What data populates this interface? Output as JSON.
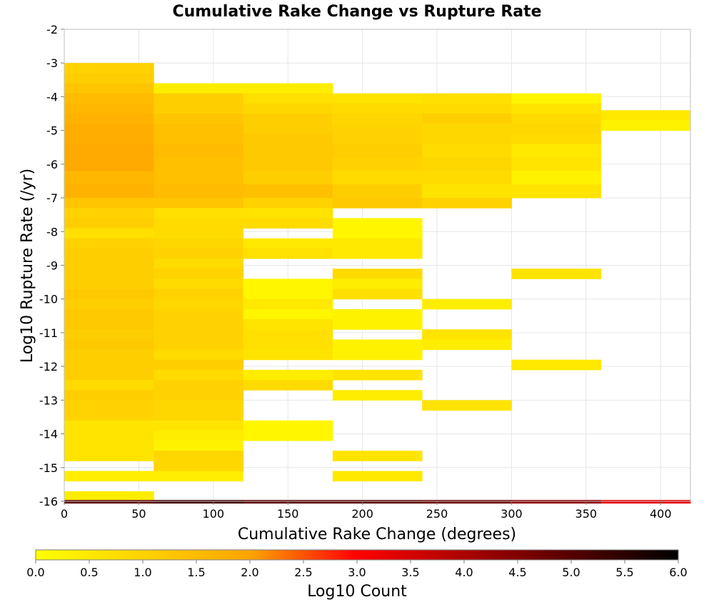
{
  "chart_data": {
    "type": "heatmap",
    "title": "Cumulative Rake Change vs Rupture Rate",
    "xlabel": "Cumulative Rake Change (degrees)",
    "ylabel": "Log10 Rupture Rate (/yr)",
    "xlim": [
      0,
      420
    ],
    "ylim": [
      -16,
      -2
    ],
    "x_ticks": [
      "0",
      "50",
      "100",
      "150",
      "200",
      "250",
      "300",
      "350",
      "400"
    ],
    "y_ticks": [
      "-2",
      "-3",
      "-4",
      "-5",
      "-6",
      "-7",
      "-8",
      "-9",
      "-10",
      "-11",
      "-12",
      "-13",
      "-14",
      "-15",
      "-16"
    ],
    "x_bin_width": 60,
    "y_bin_height": 0.29,
    "colorbar": {
      "label": "Log10 Count",
      "min": 0.0,
      "max": 6.0,
      "ticks": [
        "0.0",
        "0.5",
        "1.0",
        "1.5",
        "2.0",
        "2.5",
        "3.0",
        "3.5",
        "4.0",
        "4.5",
        "5.0",
        "5.5",
        "6.0"
      ],
      "colors": [
        "#ffff00",
        "#ffa500",
        "#ff0000",
        "#000000"
      ]
    },
    "columns": [
      {
        "x": 0,
        "cells": [
          [
            -3.0,
            -3.3,
            1.0
          ],
          [
            -3.3,
            -3.6,
            1.1
          ],
          [
            -3.6,
            -3.9,
            1.3
          ],
          [
            -3.9,
            -4.2,
            1.5
          ],
          [
            -4.2,
            -4.5,
            1.6
          ],
          [
            -4.5,
            -4.8,
            1.7
          ],
          [
            -4.8,
            -5.1,
            1.8
          ],
          [
            -5.1,
            -5.4,
            1.8
          ],
          [
            -5.4,
            -5.8,
            1.9
          ],
          [
            -5.8,
            -6.2,
            1.9
          ],
          [
            -6.2,
            -6.6,
            1.6
          ],
          [
            -6.6,
            -7.0,
            1.7
          ],
          [
            -7.0,
            -7.3,
            1.3
          ],
          [
            -7.3,
            -7.6,
            1.0
          ],
          [
            -7.6,
            -7.9,
            1.1
          ],
          [
            -7.9,
            -8.2,
            0.7
          ],
          [
            -8.2,
            -8.5,
            1.0
          ],
          [
            -8.5,
            -8.8,
            1.1
          ],
          [
            -8.8,
            -9.1,
            1.1
          ],
          [
            -9.1,
            -9.4,
            1.1
          ],
          [
            -9.4,
            -9.7,
            1.1
          ],
          [
            -9.7,
            -10.0,
            1.2
          ],
          [
            -10.0,
            -10.3,
            1.1
          ],
          [
            -10.3,
            -10.6,
            1.2
          ],
          [
            -10.6,
            -10.9,
            1.2
          ],
          [
            -10.9,
            -11.2,
            1.1
          ],
          [
            -11.2,
            -11.5,
            1.2
          ],
          [
            -11.5,
            -11.8,
            1.1
          ],
          [
            -11.8,
            -12.1,
            1.1
          ],
          [
            -12.1,
            -12.4,
            1.1
          ],
          [
            -12.4,
            -12.7,
            0.8
          ],
          [
            -12.7,
            -13.0,
            1.1
          ],
          [
            -13.0,
            -13.3,
            1.0
          ],
          [
            -13.3,
            -13.6,
            1.0
          ],
          [
            -13.6,
            -13.9,
            0.6
          ],
          [
            -13.9,
            -14.2,
            0.6
          ],
          [
            -14.2,
            -14.5,
            0.6
          ],
          [
            -14.5,
            -14.8,
            0.6
          ],
          [
            -15.1,
            -15.4,
            0.4
          ],
          [
            -15.7,
            -16.0,
            0.4
          ]
        ]
      },
      {
        "x": 60,
        "cells": [
          [
            -3.6,
            -3.9,
            0.4
          ],
          [
            -3.9,
            -4.2,
            1.1
          ],
          [
            -4.2,
            -4.5,
            1.1
          ],
          [
            -4.5,
            -4.8,
            1.3
          ],
          [
            -4.8,
            -5.1,
            1.4
          ],
          [
            -5.1,
            -5.4,
            1.4
          ],
          [
            -5.4,
            -5.8,
            1.5
          ],
          [
            -5.8,
            -6.2,
            1.4
          ],
          [
            -6.2,
            -6.6,
            1.4
          ],
          [
            -6.6,
            -7.0,
            1.5
          ],
          [
            -7.0,
            -7.3,
            1.3
          ],
          [
            -7.3,
            -7.6,
            0.7
          ],
          [
            -7.6,
            -7.9,
            0.8
          ],
          [
            -7.9,
            -8.2,
            0.8
          ],
          [
            -8.2,
            -8.5,
            0.9
          ],
          [
            -8.5,
            -8.8,
            1.0
          ],
          [
            -8.8,
            -9.1,
            0.8
          ],
          [
            -9.1,
            -9.4,
            1.0
          ],
          [
            -9.4,
            -9.7,
            0.8
          ],
          [
            -9.7,
            -10.0,
            1.0
          ],
          [
            -10.0,
            -10.3,
            0.9
          ],
          [
            -10.3,
            -10.6,
            1.0
          ],
          [
            -10.6,
            -10.9,
            1.0
          ],
          [
            -10.9,
            -11.2,
            1.0
          ],
          [
            -11.2,
            -11.5,
            1.0
          ],
          [
            -11.5,
            -11.8,
            0.8
          ],
          [
            -11.8,
            -12.1,
            1.1
          ],
          [
            -12.1,
            -12.4,
            0.8
          ],
          [
            -12.4,
            -12.7,
            1.0
          ],
          [
            -12.7,
            -13.0,
            1.0
          ],
          [
            -13.0,
            -13.3,
            0.9
          ],
          [
            -13.3,
            -13.6,
            0.9
          ],
          [
            -13.6,
            -13.9,
            0.6
          ],
          [
            -13.9,
            -14.2,
            0.4
          ],
          [
            -14.2,
            -14.5,
            0.3
          ],
          [
            -14.5,
            -14.8,
            0.9
          ],
          [
            -14.8,
            -15.1,
            0.9
          ],
          [
            -15.1,
            -15.4,
            0.4
          ]
        ]
      },
      {
        "x": 120,
        "cells": [
          [
            -3.6,
            -3.9,
            0.4
          ],
          [
            -3.9,
            -4.2,
            0.7
          ],
          [
            -4.2,
            -4.5,
            0.9
          ],
          [
            -4.5,
            -4.8,
            1.1
          ],
          [
            -4.8,
            -5.1,
            1.1
          ],
          [
            -5.1,
            -5.4,
            1.2
          ],
          [
            -5.4,
            -5.8,
            1.2
          ],
          [
            -5.8,
            -6.2,
            1.2
          ],
          [
            -6.2,
            -6.6,
            1.1
          ],
          [
            -6.6,
            -7.0,
            1.4
          ],
          [
            -7.0,
            -7.3,
            1.0
          ],
          [
            -7.3,
            -7.6,
            0.6
          ],
          [
            -7.6,
            -7.9,
            0.8
          ],
          [
            -8.2,
            -8.5,
            0.5
          ],
          [
            -8.5,
            -8.8,
            0.7
          ],
          [
            -9.4,
            -9.7,
            0.2
          ],
          [
            -9.7,
            -10.0,
            0.2
          ],
          [
            -10.0,
            -10.3,
            0.5
          ],
          [
            -10.3,
            -10.6,
            0.2
          ],
          [
            -10.6,
            -10.9,
            0.6
          ],
          [
            -10.9,
            -11.2,
            0.7
          ],
          [
            -11.2,
            -11.5,
            0.7
          ],
          [
            -11.5,
            -11.8,
            0.6
          ],
          [
            -12.1,
            -12.4,
            0.4
          ],
          [
            -12.4,
            -12.7,
            0.8
          ],
          [
            -13.6,
            -13.9,
            0.2
          ],
          [
            -13.9,
            -14.2,
            0.2
          ]
        ]
      },
      {
        "x": 180,
        "cells": [
          [
            -3.9,
            -4.2,
            0.6
          ],
          [
            -4.2,
            -4.5,
            0.8
          ],
          [
            -4.5,
            -4.8,
            0.9
          ],
          [
            -4.8,
            -5.1,
            1.0
          ],
          [
            -5.1,
            -5.4,
            1.0
          ],
          [
            -5.4,
            -5.8,
            1.1
          ],
          [
            -5.8,
            -6.2,
            1.0
          ],
          [
            -6.2,
            -6.6,
            0.8
          ],
          [
            -6.6,
            -7.0,
            1.1
          ],
          [
            -7.0,
            -7.3,
            1.2
          ],
          [
            -7.6,
            -7.9,
            0.2
          ],
          [
            -7.9,
            -8.2,
            0.2
          ],
          [
            -8.2,
            -8.5,
            0.5
          ],
          [
            -8.5,
            -8.8,
            0.5
          ],
          [
            -9.1,
            -9.4,
            0.8
          ],
          [
            -9.4,
            -9.7,
            0.4
          ],
          [
            -9.7,
            -10.0,
            0.7
          ],
          [
            -10.3,
            -10.6,
            0.3
          ],
          [
            -10.6,
            -10.9,
            0.3
          ],
          [
            -11.2,
            -11.5,
            0.3
          ],
          [
            -11.5,
            -11.8,
            0.3
          ],
          [
            -12.1,
            -12.4,
            0.6
          ],
          [
            -12.7,
            -13.0,
            0.4
          ],
          [
            -14.5,
            -14.8,
            0.6
          ],
          [
            -15.1,
            -15.4,
            0.5
          ]
        ]
      },
      {
        "x": 240,
        "cells": [
          [
            -3.9,
            -4.2,
            0.7
          ],
          [
            -4.2,
            -4.5,
            0.8
          ],
          [
            -4.5,
            -4.8,
            1.1
          ],
          [
            -4.8,
            -5.1,
            0.9
          ],
          [
            -5.1,
            -5.4,
            0.9
          ],
          [
            -5.4,
            -5.8,
            0.8
          ],
          [
            -5.8,
            -6.2,
            0.9
          ],
          [
            -6.2,
            -6.6,
            0.8
          ],
          [
            -6.6,
            -7.0,
            0.6
          ],
          [
            -7.0,
            -7.3,
            1.0
          ],
          [
            -10.0,
            -10.3,
            0.4
          ],
          [
            -10.9,
            -11.2,
            0.6
          ],
          [
            -11.2,
            -11.5,
            0.4
          ],
          [
            -13.0,
            -13.3,
            0.6
          ]
        ]
      },
      {
        "x": 300,
        "cells": [
          [
            -3.9,
            -4.2,
            0.2
          ],
          [
            -4.2,
            -4.5,
            0.6
          ],
          [
            -4.5,
            -4.8,
            0.8
          ],
          [
            -4.8,
            -5.1,
            0.9
          ],
          [
            -5.1,
            -5.4,
            0.8
          ],
          [
            -5.4,
            -5.8,
            0.5
          ],
          [
            -5.8,
            -6.2,
            0.6
          ],
          [
            -6.2,
            -6.6,
            0.3
          ],
          [
            -6.6,
            -7.0,
            0.6
          ],
          [
            -9.1,
            -9.4,
            0.6
          ],
          [
            -11.8,
            -12.1,
            0.5
          ]
        ]
      },
      {
        "x": 360,
        "cells": [
          [
            -4.4,
            -5.0,
            0.5
          ],
          [
            -4.7,
            -5.0,
            0.3
          ]
        ]
      }
    ],
    "bottom_row": {
      "y_range": [
        -15.96,
        -16.1
      ],
      "segments": [
        [
          0,
          60,
          4.9
        ],
        [
          60,
          120,
          5.2
        ],
        [
          120,
          180,
          4.9
        ],
        [
          180,
          240,
          4.9
        ],
        [
          240,
          300,
          4.7
        ],
        [
          300,
          360,
          4.3
        ],
        [
          360,
          420,
          3.2
        ]
      ]
    }
  }
}
